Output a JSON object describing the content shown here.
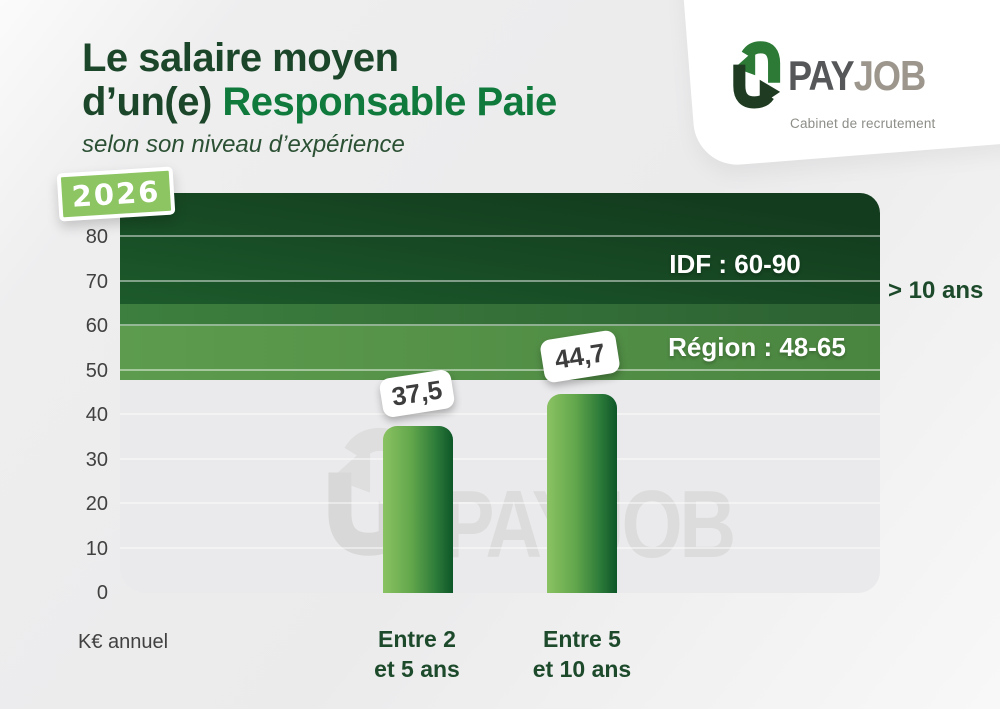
{
  "header": {
    "title_line1": "Le salaire moyen",
    "title_line2_prefix": "d’un(e) ",
    "title_line2_highlight": "Responsable Paie",
    "subtitle": "selon son niveau d’expérience",
    "year_badge": "2026"
  },
  "logo": {
    "wordmark_pay": "PAY",
    "wordmark_job": "JOB",
    "tagline": "Cabinet de recrutement",
    "icon": "payjob-loop-arrows-icon"
  },
  "watermark": {
    "text": "PAYJOB",
    "icon": "payjob-loop-arrows-icon"
  },
  "chart_data": {
    "type": "bar",
    "title": "Le salaire moyen d’un(e) Responsable Paie",
    "subtitle": "selon son niveau d’expérience",
    "year": "2026",
    "unit_label": "K€ annuel",
    "ylim": [
      0,
      90
    ],
    "y_ticks": [
      0,
      10,
      20,
      30,
      40,
      50,
      60,
      70,
      80
    ],
    "grid": true,
    "legend_position": "none",
    "categories": [
      {
        "line1": "Entre 2",
        "line2": "et 5 ans"
      },
      {
        "line1": "Entre 5",
        "line2": "et 10 ans"
      }
    ],
    "values": [
      37.5,
      44.7
    ],
    "value_labels": [
      "37,5",
      "44,7"
    ],
    "band": {
      "label": "> 10 ans",
      "idf_label": "IDF : 60-90",
      "idf_range": [
        60,
        90
      ],
      "region_label": "Région : 48-65",
      "region_range": [
        48,
        65
      ]
    }
  },
  "colors": {
    "title_dark_green": "#1c4629",
    "title_highlight_green": "#0f7a3c",
    "badge_green": "#8cc561",
    "band_dark_green": "#164a23",
    "band_overlap_green": "#357338",
    "band_light_green": "#539247",
    "bar_gradient_left": "#8ac262",
    "bar_gradient_right": "#0d5628",
    "plot_background": "#eaeaec",
    "axis_text": "#414141",
    "label_white": "#ffffff",
    "logo_pay_gray": "#565759",
    "logo_job_gray": "#9c968c",
    "logo_arrow_medium_green": "#2c7a35",
    "logo_arrow_dark_green": "#1f3c22"
  }
}
